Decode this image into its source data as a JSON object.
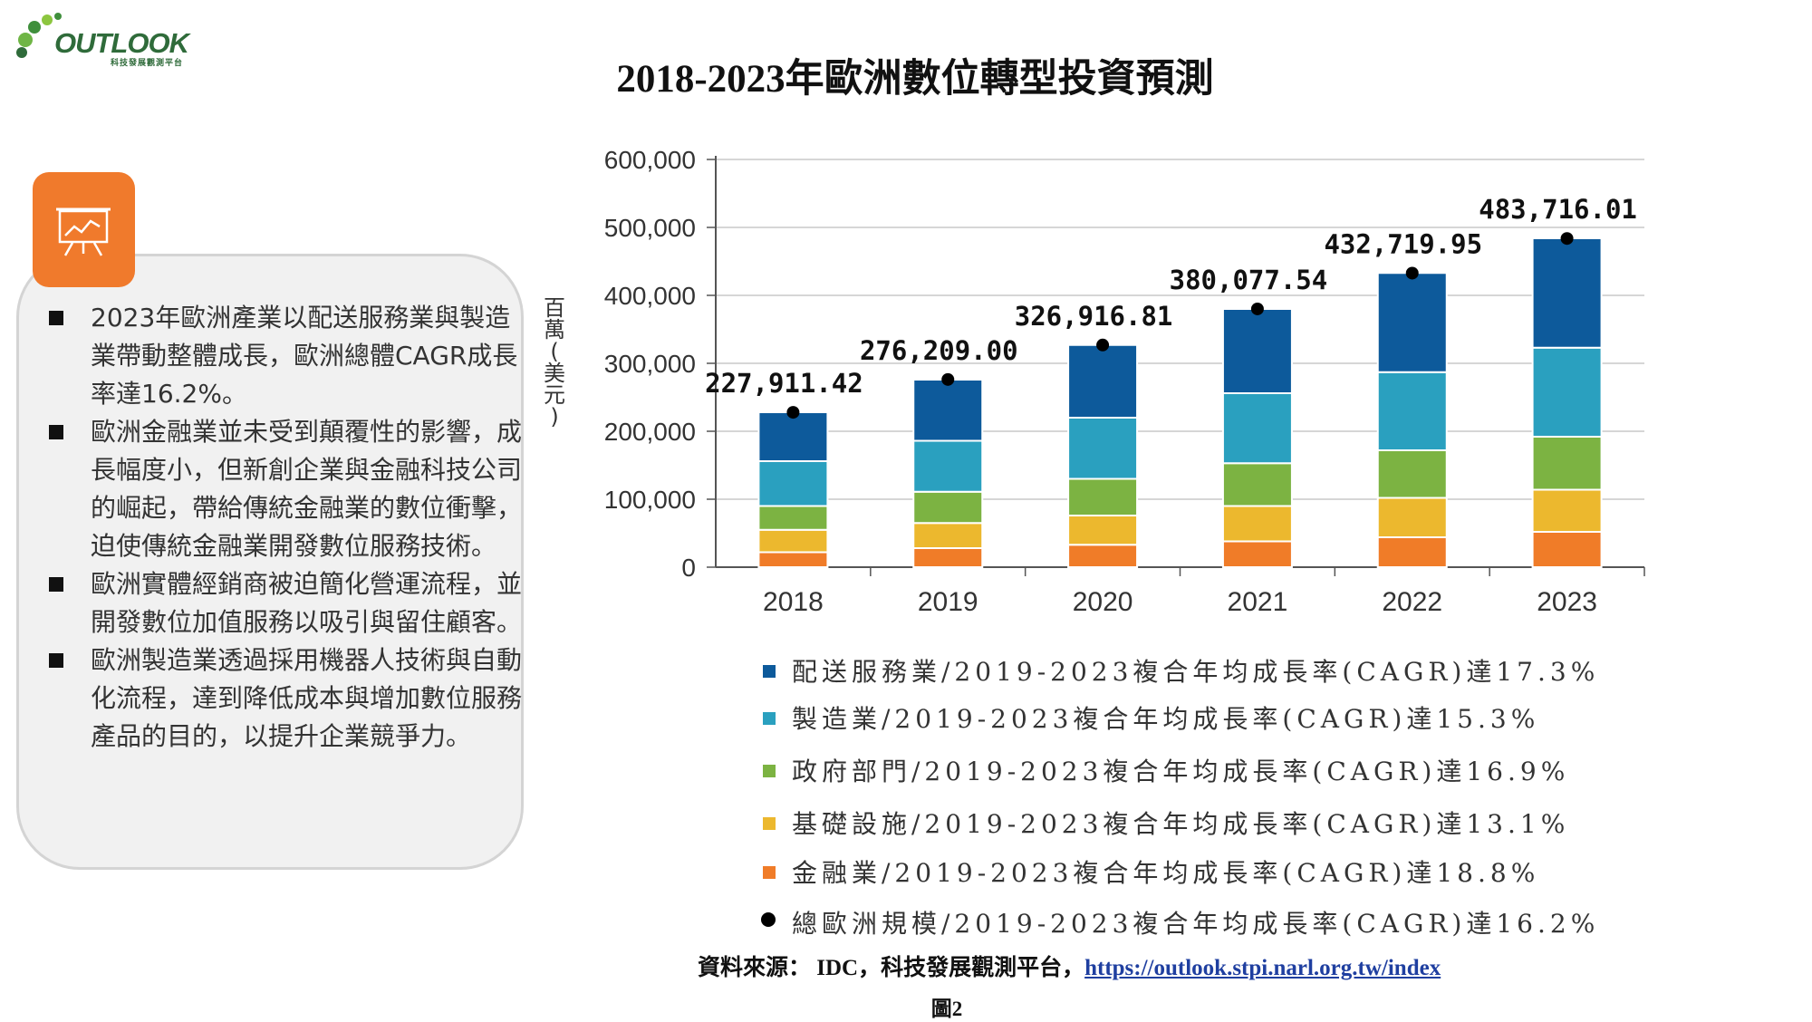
{
  "logo": {
    "text": "OUTLOOK",
    "subtitle": "科技發展觀測平台"
  },
  "title": "2018-2023年歐洲數位轉型投資預測",
  "bullets": [
    "2023年歐洲產業以配送服務業與製造業帶動整體成長，歐洲總體CAGR成長率達16.2%。",
    "歐洲金融業並未受到顛覆性的影響，成長幅度小，但新創企業與金融科技公司的崛起，帶給傳統金融業的數位衝擊，迫使傳統金融業開發數位服務技術。",
    "歐洲實體經銷商被迫簡化營運流程，並開發數位加值服務以吸引與留住顧客。",
    "歐洲製造業透過採用機器人技術與自動化流程，達到降低成本與增加數位服務產品的目的，以提升企業競爭力。"
  ],
  "chart_data": {
    "type": "bar",
    "stacked": true,
    "categories": [
      "2018",
      "2019",
      "2020",
      "2021",
      "2022",
      "2023"
    ],
    "ylabel": "百萬(美元)",
    "ylim": [
      0,
      600000
    ],
    "yticks": [
      "0",
      "100,000",
      "200,000",
      "300,000",
      "400,000",
      "500,000",
      "600,000"
    ],
    "yticks_values": [
      0,
      100000,
      200000,
      300000,
      400000,
      500000,
      600000
    ],
    "grid": true,
    "legend_position": "bottom",
    "series": [
      {
        "name": "金融業/2019-2023複合年均成長率(CAGR)達18.8%",
        "color": "#f07c28",
        "values": [
          22000,
          28000,
          33000,
          38000,
          44000,
          52000
        ]
      },
      {
        "name": "基礎設施/2019-2023複合年均成長率(CAGR)達13.1%",
        "color": "#ecb82e",
        "values": [
          33000,
          37000,
          43000,
          52000,
          58000,
          62000
        ]
      },
      {
        "name": "政府部門/2019-2023複合年均成長率(CAGR)達16.9%",
        "color": "#7cb342",
        "values": [
          35000,
          46000,
          54000,
          63000,
          70000,
          78000
        ]
      },
      {
        "name": "製造業/2019-2023複合年均成長率(CAGR)達15.3%",
        "color": "#2aa0bf",
        "values": [
          66000,
          75000,
          90000,
          103000,
          115000,
          131000
        ]
      },
      {
        "name": "配送服務業/2019-2023複合年均成長率(CAGR)達17.3%",
        "color": "#0d5a9b",
        "values": [
          72000,
          90000,
          107000,
          124000,
          146000,
          161000
        ]
      }
    ],
    "total": {
      "name": "總歐洲規模/2019-2023複合年均成長率(CAGR)達16.2%",
      "values": [
        227911.42,
        276209.0,
        326916.81,
        380077.54,
        432719.95,
        483716.01
      ],
      "labels": [
        "227,911.42",
        "276,209.00",
        "326,916.81",
        "380,077.54",
        "432,719.95",
        "483,716.01"
      ]
    },
    "legend_order": [
      {
        "name": "配送服務業/2019-2023複合年均成長率(CAGR)達17.3%",
        "color": "#0d5a9b",
        "marker": "square"
      },
      {
        "name": "製造業/2019-2023複合年均成長率(CAGR)達15.3%",
        "color": "#2aa0bf",
        "marker": "square"
      },
      {
        "name": "政府部門/2019-2023複合年均成長率(CAGR)達16.9%",
        "color": "#7cb342",
        "marker": "square"
      },
      {
        "name": "基礎設施/2019-2023複合年均成長率(CAGR)達13.1%",
        "color": "#ecb82e",
        "marker": "square"
      },
      {
        "name": "金融業/2019-2023複合年均成長率(CAGR)達18.8%",
        "color": "#f07c28",
        "marker": "square"
      },
      {
        "name": "總歐洲規模/2019-2023複合年均成長率(CAGR)達16.2%",
        "color": "#000000",
        "marker": "dot"
      }
    ]
  },
  "source": {
    "prefix": "資料來源： IDC，科技發展觀測平台，",
    "link": "https://outlook.stpi.narl.org.tw/index"
  },
  "figure_label": "圖2"
}
